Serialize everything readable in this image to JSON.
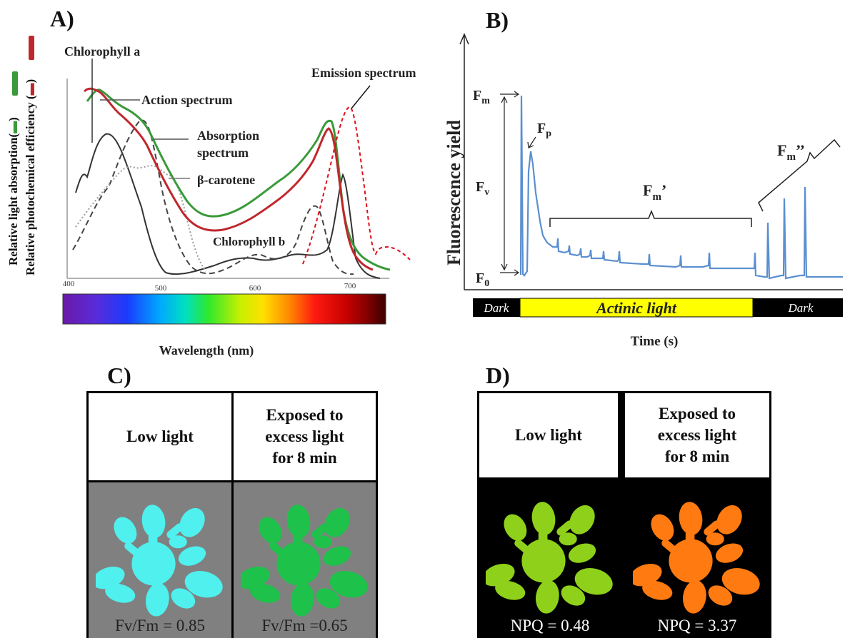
{
  "panel_a": {
    "letter": "A)",
    "y_label_1": "Relative light absorption(",
    "y_label_1_end": ")",
    "y_label_2": "Relative photochemical efficiency (",
    "y_label_2_end": ")",
    "x_label": "Wavelength (nm)",
    "ticks": [
      "400",
      "500",
      "600",
      "700"
    ],
    "labels": {
      "chlorophyll_a": "Chlorophyll  a",
      "action_spectrum": "Action spectrum",
      "absorption_1": "Absorption",
      "absorption_2": "spectrum",
      "beta_carotene": "β-carotene",
      "chlorophyll_b": "Chlorophyll  b",
      "emission_spectrum": "Emission spectrum"
    },
    "colors": {
      "absorption": "#3a9a3a",
      "action": "#c0272d",
      "emission": "#e0101a"
    }
  },
  "panel_b": {
    "letter": "B)",
    "y_label": "Fluorescence yield",
    "x_label": "Time  (s)",
    "labels": {
      "fm": "F",
      "fm_sub": "m",
      "fp": "F",
      "fp_sub": "p",
      "fv": "F",
      "fv_sub": "v",
      "f0": "F",
      "f0_sub": "0",
      "fm_prime": "F",
      "fm_prime_sub": "m",
      "fm_prime_mark": "’",
      "fm_dprime": "F",
      "fm_dprime_sub": "m",
      "fm_dprime_mark": "’’"
    },
    "bar": {
      "dark_left": "Dark",
      "actinic": "Actinic light",
      "dark_right": "Dark"
    },
    "colors": {
      "trace": "#5b8fd0",
      "actinic": "#ffff00"
    }
  },
  "panel_c": {
    "letter": "C)",
    "left_header": "Low light",
    "right_header_1": "Exposed to",
    "right_header_2": "excess light",
    "right_header_3": "for 8 min",
    "left_value": "Fv/Fm = 0.85",
    "right_value": "Fv/Fm =0.65",
    "colors": {
      "background": "#808080",
      "left_plant": "#4ff0ee",
      "right_plant": "#1ec24a"
    }
  },
  "panel_d": {
    "letter": "D)",
    "left_header": "Low light",
    "right_header_1": "Exposed to",
    "right_header_2": "excess light",
    "right_header_3": "for 8 min",
    "left_value": "NPQ = 0.48",
    "right_value": "NPQ = 3.37",
    "colors": {
      "background": "#000000",
      "left_plant": "#8fd11a",
      "right_plant": "#ff7a10"
    }
  }
}
